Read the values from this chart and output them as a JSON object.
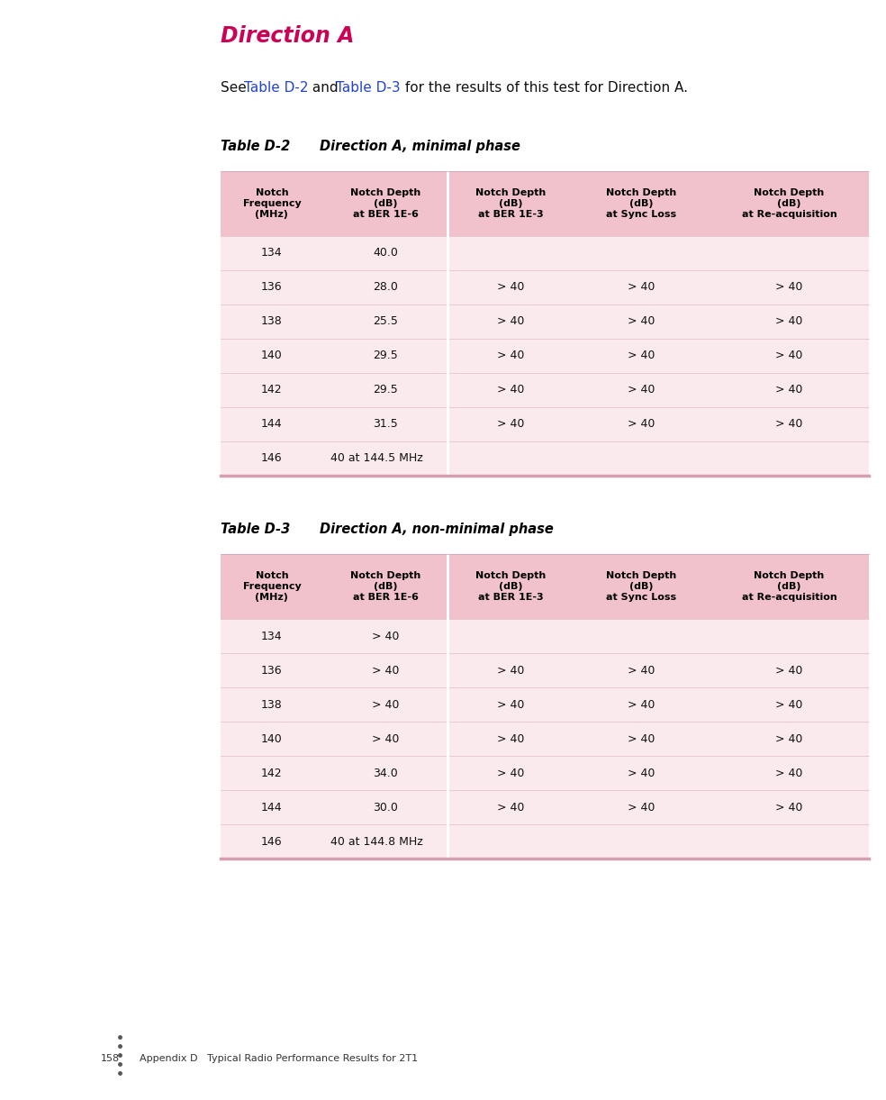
{
  "page_number": "158",
  "footer_text": "Appendix D   Typical Radio Performance Results for 2T1",
  "direction_title": "Direction A",
  "direction_title_color": "#cc0055",
  "intro_link_color": "#2244cc",
  "intro_text_color": "#111111",
  "table1_label": "Table D-2",
  "table1_title": "Direction A, minimal phase",
  "table2_label": "Table D-3",
  "table2_title": "Direction A, non-minimal phase",
  "header_bg": "#f2c2cc",
  "row_bg": "#faeaed",
  "bottom_border_color": "#d4a0b0",
  "vert_sep_color": "#ffffff",
  "col_headers": [
    "Notch\nFrequency\n(MHz)",
    "Notch Depth\n(dB)\nat BER 1E-6",
    "Notch Depth\n(dB)\nat BER 1E-3",
    "Notch Depth\n(dB)\nat Sync Loss",
    "Notch Depth\n(dB)\nat Re-acquisition"
  ],
  "table1_rows": [
    [
      "134",
      "40.0",
      "",
      "",
      ""
    ],
    [
      "136",
      "28.0",
      "> 40",
      "> 40",
      "> 40"
    ],
    [
      "138",
      "25.5",
      "> 40",
      "> 40",
      "> 40"
    ],
    [
      "140",
      "29.5",
      "> 40",
      "> 40",
      "> 40"
    ],
    [
      "142",
      "29.5",
      "> 40",
      "> 40",
      "> 40"
    ],
    [
      "144",
      "31.5",
      "> 40",
      "> 40",
      "> 40"
    ],
    [
      "146",
      "40 at 144.5 MHz",
      "",
      "",
      ""
    ]
  ],
  "table2_rows": [
    [
      "134",
      "> 40",
      "",
      "",
      ""
    ],
    [
      "136",
      "> 40",
      "> 40",
      "> 40",
      "> 40"
    ],
    [
      "138",
      "> 40",
      "> 40",
      "> 40",
      "> 40"
    ],
    [
      "140",
      "> 40",
      "> 40",
      "> 40",
      "> 40"
    ],
    [
      "142",
      "34.0",
      "> 40",
      "> 40",
      "> 40"
    ],
    [
      "144",
      "30.0",
      "> 40",
      "> 40",
      "> 40"
    ],
    [
      "146",
      "40 at 144.8 MHz",
      "",
      "",
      ""
    ]
  ],
  "background_color": "#ffffff"
}
